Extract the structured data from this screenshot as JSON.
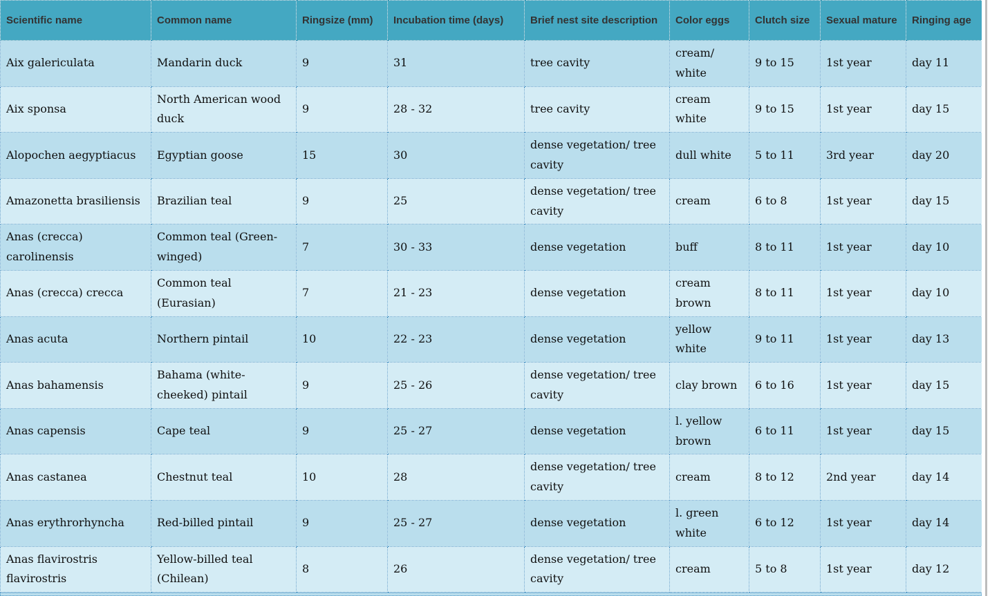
{
  "colors": {
    "header_bg": "#44a8c2",
    "row_odd": "#badeed",
    "row_even": "#d4ecf5",
    "cell_border": "#4a94c4",
    "header_text": "#333333",
    "body_text": "#101010"
  },
  "table": {
    "columns": [
      "Scientific name",
      "Common name",
      "Ringsize (mm)",
      "Incubation time (days)",
      "Brief nest site description",
      "Color eggs",
      "Clutch size",
      "Sexual mature",
      "Ringing age"
    ],
    "rows": [
      [
        "Aix galericulata",
        "Mandarin duck",
        "9",
        "31",
        "tree cavity",
        "cream/ white",
        "9 to 15",
        "1st year",
        "day 11"
      ],
      [
        "Aix sponsa",
        "North American wood duck",
        "9",
        "28 - 32",
        "tree cavity",
        "cream white",
        "9 to 15",
        "1st year",
        "day 15"
      ],
      [
        "Alopochen aegyptiacus",
        "Egyptian goose",
        "15",
        "30",
        "dense vegetation/ tree cavity",
        "dull white",
        "5 to 11",
        "3rd year",
        "day 20"
      ],
      [
        "Amazonetta brasiliensis",
        "Brazilian teal",
        "9",
        "25",
        "dense vegetation/ tree cavity",
        "cream",
        "6 to 8",
        "1st year",
        "day 15"
      ],
      [
        "Anas (crecca) carolinensis",
        "Common teal (Green-winged)",
        "7",
        "30 - 33",
        "dense vegetation",
        "buff",
        "8 to 11",
        "1st year",
        "day 10"
      ],
      [
        "Anas (crecca) crecca",
        "Common teal (Eurasian)",
        "7",
        "21 - 23",
        "dense vegetation",
        "cream brown",
        "8 to 11",
        "1st year",
        "day 10"
      ],
      [
        "Anas acuta",
        "Northern pintail",
        "10",
        "22 - 23",
        "dense vegetation",
        "yellow white",
        "9 to 11",
        "1st year",
        "day 13"
      ],
      [
        "Anas bahamensis",
        "Bahama (white-cheeked) pintail",
        "9",
        "25 - 26",
        "dense vegetation/ tree cavity",
        "clay brown",
        "6 to 16",
        "1st year",
        "day 15"
      ],
      [
        "Anas capensis",
        "Cape teal",
        "9",
        "25 - 27",
        "dense vegetation",
        "l. yellow brown",
        "6 to 11",
        "1st year",
        "day 15"
      ],
      [
        "Anas castanea",
        "Chestnut teal",
        "10",
        "28",
        "dense vegetation/ tree cavity",
        "cream",
        "8 to 12",
        "2nd year",
        "day 14"
      ],
      [
        "Anas erythrorhyncha",
        "Red-billed pintail",
        "9",
        "25 - 27",
        "dense vegetation",
        "l. green white",
        "6 to 12",
        "1st year",
        "day 14"
      ],
      [
        "Anas flavirostris flavirostris",
        "Yellow-billed teal (Chilean)",
        "8",
        "26",
        "dense vegetation/ tree cavity",
        "cream",
        "5 to 8",
        "1st year",
        "day 12"
      ]
    ]
  }
}
